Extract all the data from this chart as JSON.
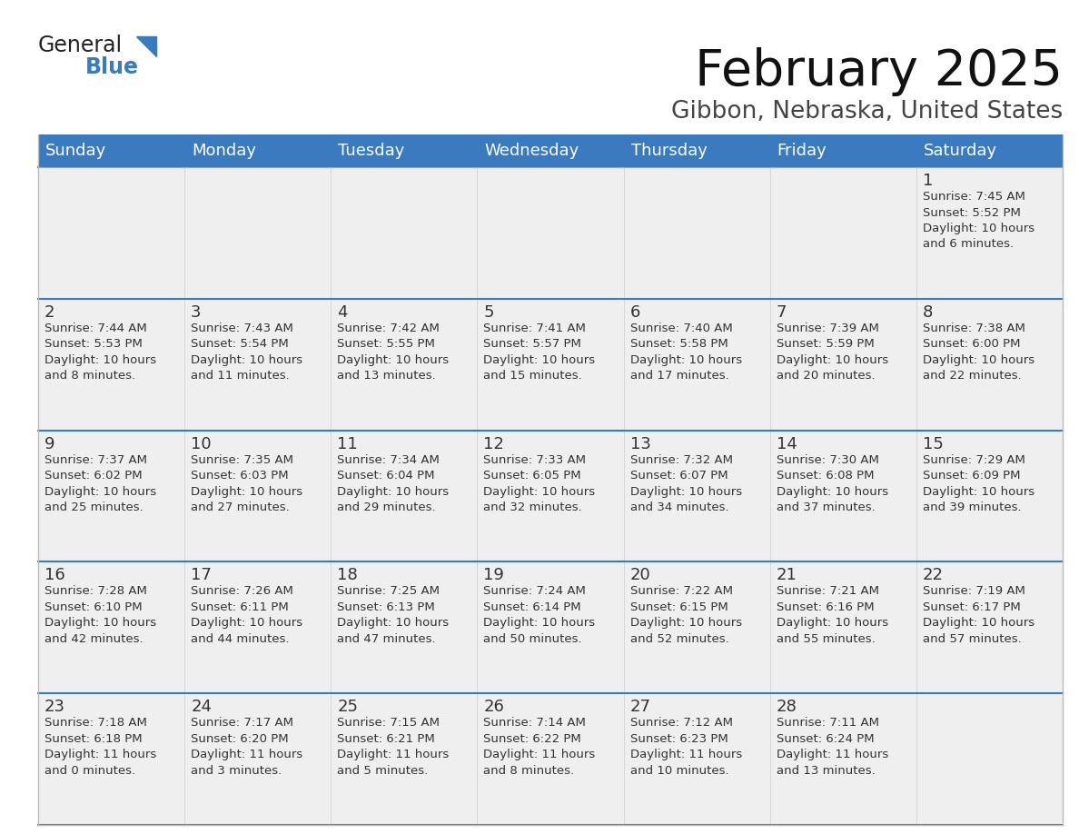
{
  "title": "February 2025",
  "subtitle": "Gibbon, Nebraska, United States",
  "header_color": "#3a7abf",
  "header_text_color": "#ffffff",
  "cell_bg_color": "#efefef",
  "cell_border_top_color": "#3a7abf",
  "row_sep_color": "#3a7abf",
  "day_number_color": "#333333",
  "cell_text_color": "#333333",
  "days_of_week": [
    "Sunday",
    "Monday",
    "Tuesday",
    "Wednesday",
    "Thursday",
    "Friday",
    "Saturday"
  ],
  "weeks": [
    [
      {
        "day": "",
        "text": ""
      },
      {
        "day": "",
        "text": ""
      },
      {
        "day": "",
        "text": ""
      },
      {
        "day": "",
        "text": ""
      },
      {
        "day": "",
        "text": ""
      },
      {
        "day": "",
        "text": ""
      },
      {
        "day": "1",
        "text": "Sunrise: 7:45 AM\nSunset: 5:52 PM\nDaylight: 10 hours\nand 6 minutes."
      }
    ],
    [
      {
        "day": "2",
        "text": "Sunrise: 7:44 AM\nSunset: 5:53 PM\nDaylight: 10 hours\nand 8 minutes."
      },
      {
        "day": "3",
        "text": "Sunrise: 7:43 AM\nSunset: 5:54 PM\nDaylight: 10 hours\nand 11 minutes."
      },
      {
        "day": "4",
        "text": "Sunrise: 7:42 AM\nSunset: 5:55 PM\nDaylight: 10 hours\nand 13 minutes."
      },
      {
        "day": "5",
        "text": "Sunrise: 7:41 AM\nSunset: 5:57 PM\nDaylight: 10 hours\nand 15 minutes."
      },
      {
        "day": "6",
        "text": "Sunrise: 7:40 AM\nSunset: 5:58 PM\nDaylight: 10 hours\nand 17 minutes."
      },
      {
        "day": "7",
        "text": "Sunrise: 7:39 AM\nSunset: 5:59 PM\nDaylight: 10 hours\nand 20 minutes."
      },
      {
        "day": "8",
        "text": "Sunrise: 7:38 AM\nSunset: 6:00 PM\nDaylight: 10 hours\nand 22 minutes."
      }
    ],
    [
      {
        "day": "9",
        "text": "Sunrise: 7:37 AM\nSunset: 6:02 PM\nDaylight: 10 hours\nand 25 minutes."
      },
      {
        "day": "10",
        "text": "Sunrise: 7:35 AM\nSunset: 6:03 PM\nDaylight: 10 hours\nand 27 minutes."
      },
      {
        "day": "11",
        "text": "Sunrise: 7:34 AM\nSunset: 6:04 PM\nDaylight: 10 hours\nand 29 minutes."
      },
      {
        "day": "12",
        "text": "Sunrise: 7:33 AM\nSunset: 6:05 PM\nDaylight: 10 hours\nand 32 minutes."
      },
      {
        "day": "13",
        "text": "Sunrise: 7:32 AM\nSunset: 6:07 PM\nDaylight: 10 hours\nand 34 minutes."
      },
      {
        "day": "14",
        "text": "Sunrise: 7:30 AM\nSunset: 6:08 PM\nDaylight: 10 hours\nand 37 minutes."
      },
      {
        "day": "15",
        "text": "Sunrise: 7:29 AM\nSunset: 6:09 PM\nDaylight: 10 hours\nand 39 minutes."
      }
    ],
    [
      {
        "day": "16",
        "text": "Sunrise: 7:28 AM\nSunset: 6:10 PM\nDaylight: 10 hours\nand 42 minutes."
      },
      {
        "day": "17",
        "text": "Sunrise: 7:26 AM\nSunset: 6:11 PM\nDaylight: 10 hours\nand 44 minutes."
      },
      {
        "day": "18",
        "text": "Sunrise: 7:25 AM\nSunset: 6:13 PM\nDaylight: 10 hours\nand 47 minutes."
      },
      {
        "day": "19",
        "text": "Sunrise: 7:24 AM\nSunset: 6:14 PM\nDaylight: 10 hours\nand 50 minutes."
      },
      {
        "day": "20",
        "text": "Sunrise: 7:22 AM\nSunset: 6:15 PM\nDaylight: 10 hours\nand 52 minutes."
      },
      {
        "day": "21",
        "text": "Sunrise: 7:21 AM\nSunset: 6:16 PM\nDaylight: 10 hours\nand 55 minutes."
      },
      {
        "day": "22",
        "text": "Sunrise: 7:19 AM\nSunset: 6:17 PM\nDaylight: 10 hours\nand 57 minutes."
      }
    ],
    [
      {
        "day": "23",
        "text": "Sunrise: 7:18 AM\nSunset: 6:18 PM\nDaylight: 11 hours\nand 0 minutes."
      },
      {
        "day": "24",
        "text": "Sunrise: 7:17 AM\nSunset: 6:20 PM\nDaylight: 11 hours\nand 3 minutes."
      },
      {
        "day": "25",
        "text": "Sunrise: 7:15 AM\nSunset: 6:21 PM\nDaylight: 11 hours\nand 5 minutes."
      },
      {
        "day": "26",
        "text": "Sunrise: 7:14 AM\nSunset: 6:22 PM\nDaylight: 11 hours\nand 8 minutes."
      },
      {
        "day": "27",
        "text": "Sunrise: 7:12 AM\nSunset: 6:23 PM\nDaylight: 11 hours\nand 10 minutes."
      },
      {
        "day": "28",
        "text": "Sunrise: 7:11 AM\nSunset: 6:24 PM\nDaylight: 11 hours\nand 13 minutes."
      },
      {
        "day": "",
        "text": ""
      }
    ]
  ],
  "logo_general_color": "#222222",
  "logo_blue_color": "#3a7abf",
  "figsize": [
    11.88,
    9.18
  ],
  "dpi": 100
}
